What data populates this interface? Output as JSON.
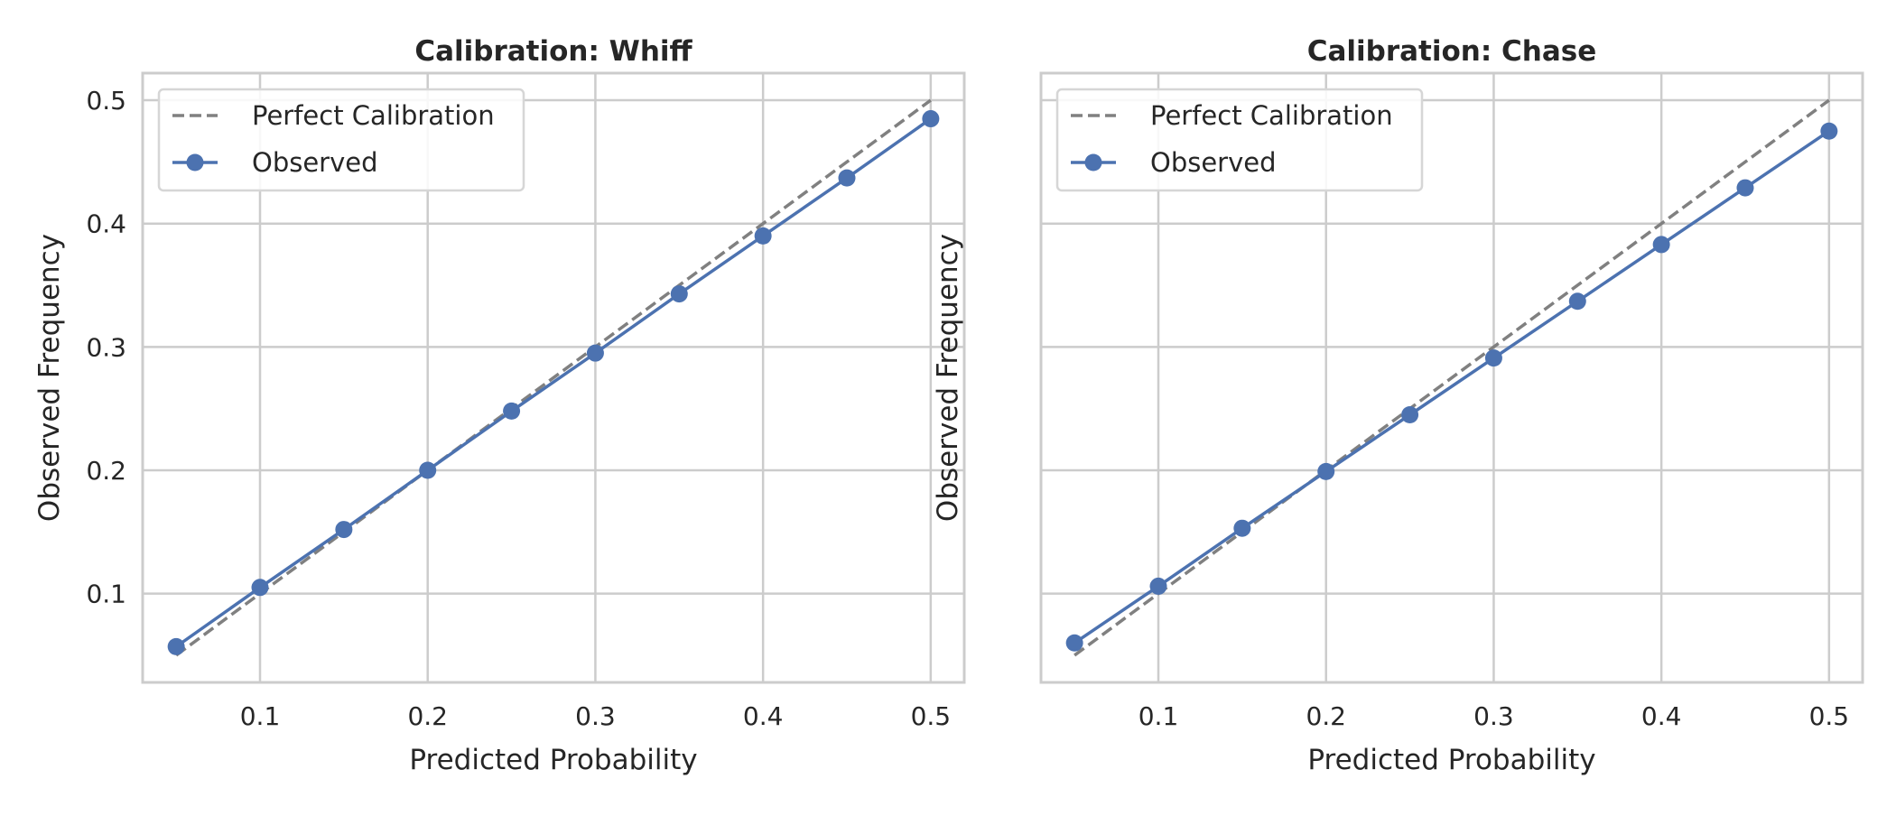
{
  "colors": {
    "observed": "#4C72B0",
    "perfect": "#808080",
    "grid": "#cccccc",
    "frame": "#cccccc",
    "text": "#262626",
    "legend_border": "#d6d6d6"
  },
  "chart_data": [
    {
      "type": "line",
      "title": "Calibration: Whiff",
      "xlabel": "Predicted Probability",
      "ylabel": "Observed Frequency",
      "xlim": [
        0.03,
        0.52
      ],
      "ylim": [
        0.028,
        0.522
      ],
      "xticks": [
        0.1,
        0.2,
        0.3,
        0.4,
        0.5
      ],
      "yticks": [
        0.1,
        0.2,
        0.3,
        0.4,
        0.5
      ],
      "xtick_labels": [
        "0.1",
        "0.2",
        "0.3",
        "0.4",
        "0.5"
      ],
      "ytick_labels": [
        "0.1",
        "0.2",
        "0.3",
        "0.4",
        "0.5"
      ],
      "show_y_tick_labels": true,
      "grid": true,
      "legend": "top-left",
      "series": [
        {
          "name": "Perfect Calibration",
          "style": "dashed",
          "x": [
            0.05,
            0.5
          ],
          "y": [
            0.05,
            0.5
          ]
        },
        {
          "name": "Observed",
          "style": "solid-markers",
          "x": [
            0.05,
            0.1,
            0.15,
            0.2,
            0.25,
            0.3,
            0.35,
            0.4,
            0.45,
            0.5
          ],
          "y": [
            0.057,
            0.105,
            0.152,
            0.2,
            0.248,
            0.295,
            0.343,
            0.39,
            0.437,
            0.485
          ]
        }
      ]
    },
    {
      "type": "line",
      "title": "Calibration: Chase",
      "xlabel": "Predicted Probability",
      "ylabel": "Observed Frequency",
      "xlim": [
        0.03,
        0.52
      ],
      "ylim": [
        0.028,
        0.522
      ],
      "xticks": [
        0.1,
        0.2,
        0.3,
        0.4,
        0.5
      ],
      "yticks": [
        0.1,
        0.2,
        0.3,
        0.4,
        0.5
      ],
      "xtick_labels": [
        "0.1",
        "0.2",
        "0.3",
        "0.4",
        "0.5"
      ],
      "ytick_labels": [],
      "show_y_tick_labels": false,
      "grid": true,
      "legend": "top-left",
      "series": [
        {
          "name": "Perfect Calibration",
          "style": "dashed",
          "x": [
            0.05,
            0.5
          ],
          "y": [
            0.05,
            0.5
          ]
        },
        {
          "name": "Observed",
          "style": "solid-markers",
          "x": [
            0.05,
            0.1,
            0.15,
            0.2,
            0.25,
            0.3,
            0.35,
            0.4,
            0.45,
            0.5
          ],
          "y": [
            0.06,
            0.106,
            0.153,
            0.199,
            0.245,
            0.291,
            0.337,
            0.383,
            0.429,
            0.475
          ]
        }
      ]
    }
  ]
}
